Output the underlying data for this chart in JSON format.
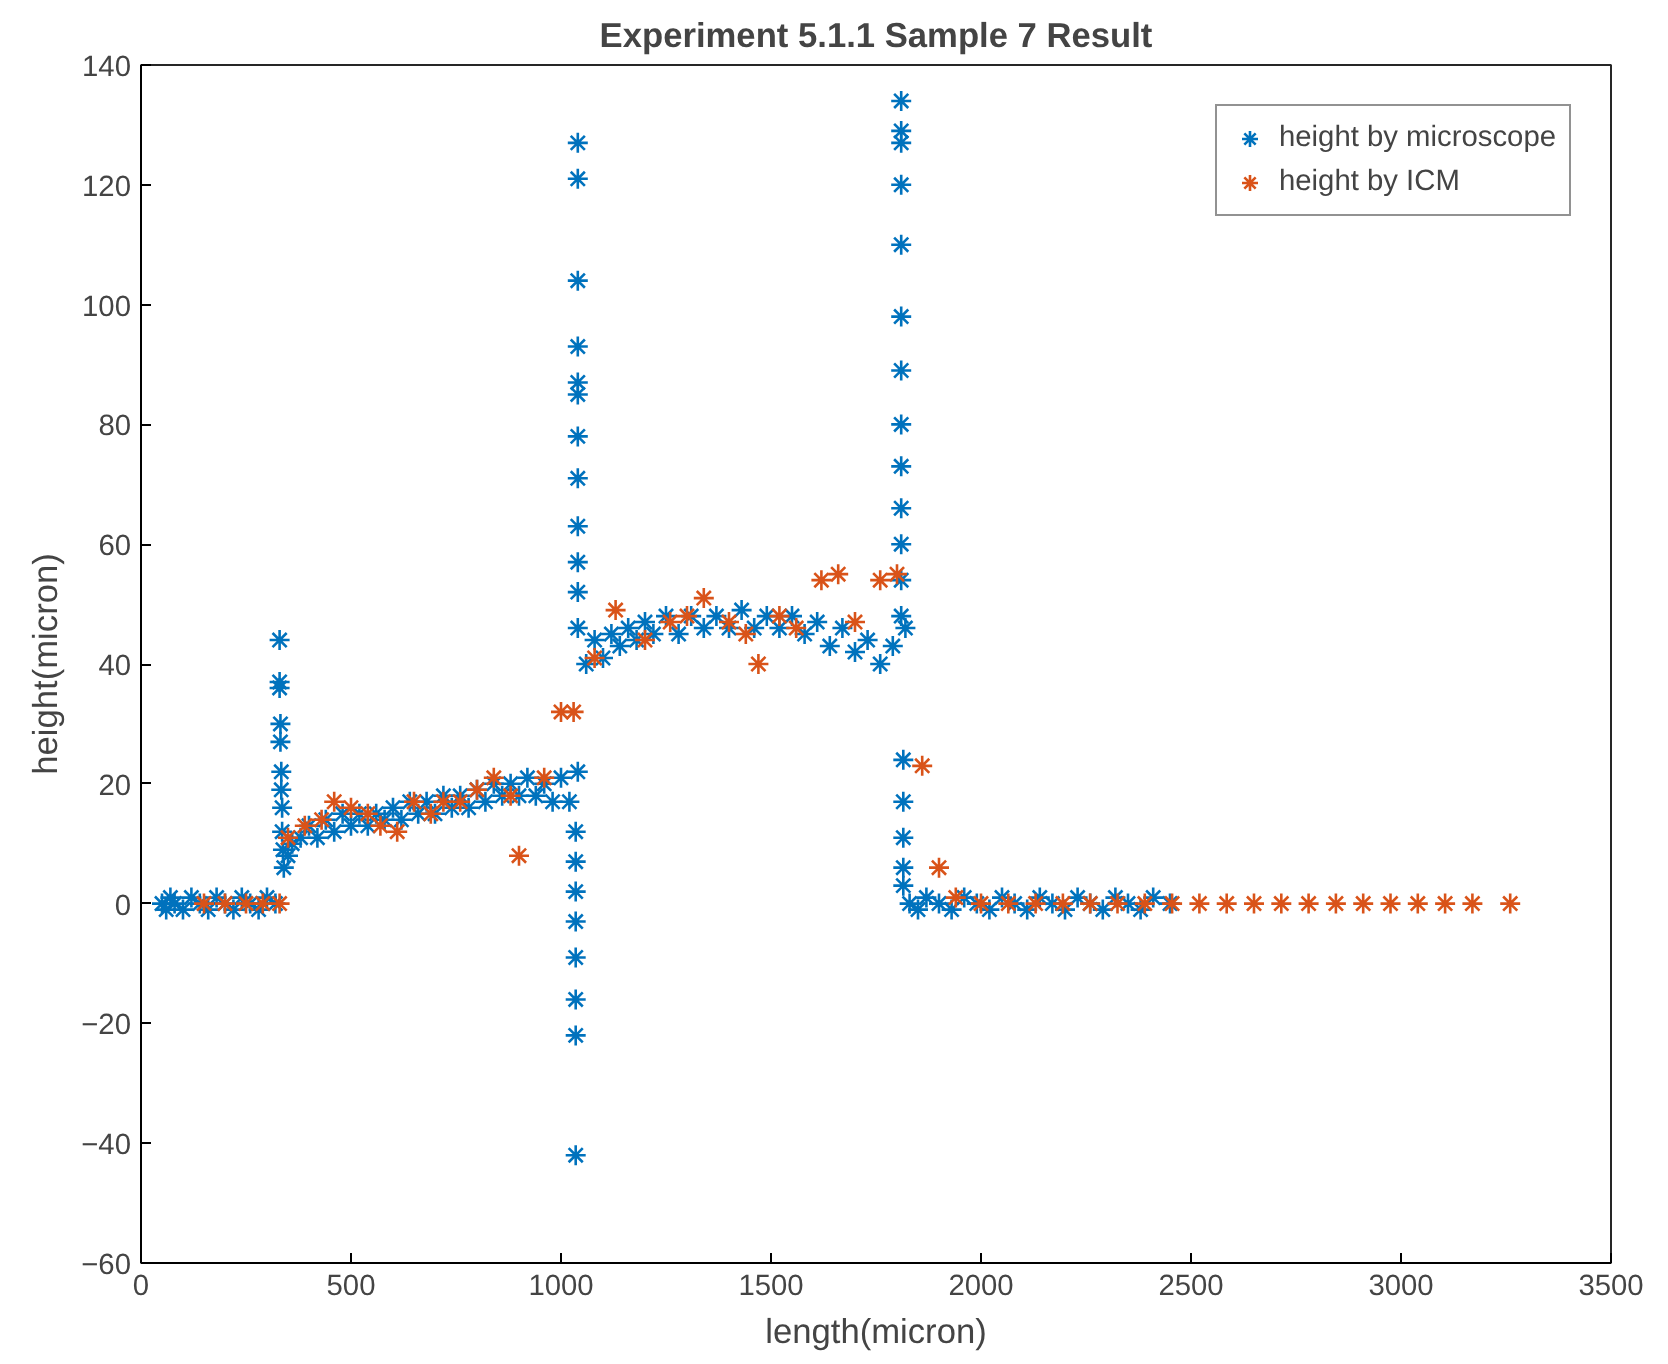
{
  "chart_data": {
    "type": "scatter",
    "title": "Experiment 5.1.1 Sample 7 Result",
    "xlabel": "length(micron)",
    "ylabel": "height(micron)",
    "xlim": [
      0,
      3500
    ],
    "xticks": [
      0,
      500,
      1000,
      1500,
      2000,
      2500,
      3000,
      3500
    ],
    "ylim": [
      -60,
      140
    ],
    "yticks": [
      -60,
      -40,
      -20,
      0,
      20,
      40,
      60,
      80,
      100,
      120,
      140
    ],
    "grid": false,
    "legend": "top right",
    "marker": "cross",
    "series": [
      {
        "name": "height by microscope",
        "color": "#0072bd",
        "x": [
          50,
          60,
          70,
          80,
          100,
          120,
          140,
          160,
          180,
          200,
          220,
          240,
          260,
          280,
          300,
          320,
          330,
          330,
          330,
          332,
          332,
          334,
          334,
          336,
          336,
          338,
          340,
          350,
          360,
          380,
          400,
          420,
          440,
          460,
          480,
          500,
          520,
          540,
          560,
          580,
          600,
          620,
          640,
          660,
          680,
          700,
          720,
          740,
          760,
          780,
          800,
          820,
          840,
          860,
          880,
          900,
          920,
          940,
          960,
          980,
          1000,
          1020,
          1040,
          1035,
          1035,
          1035,
          1035,
          1035,
          1035,
          1035,
          1035,
          1040,
          1040,
          1040,
          1040,
          1040,
          1040,
          1040,
          1040,
          1040,
          1040,
          1040,
          1040,
          1060,
          1080,
          1100,
          1120,
          1140,
          1160,
          1180,
          1200,
          1220,
          1250,
          1280,
          1310,
          1340,
          1370,
          1400,
          1430,
          1460,
          1490,
          1520,
          1550,
          1580,
          1610,
          1640,
          1670,
          1700,
          1730,
          1760,
          1790,
          1810,
          1810,
          1810,
          1810,
          1810,
          1810,
          1810,
          1810,
          1810,
          1810,
          1810,
          1810,
          1810,
          1820,
          1815,
          1815,
          1815,
          1815,
          1815,
          1830,
          1850,
          1870,
          1900,
          1930,
          1960,
          1990,
          2020,
          2050,
          2080,
          2110,
          2140,
          2170,
          2200,
          2230,
          2260,
          2290,
          2320,
          2350,
          2380,
          2410,
          2450
        ],
        "values": [
          0,
          -1,
          1,
          0,
          -1,
          1,
          0,
          -1,
          1,
          0,
          -1,
          1,
          0,
          -1,
          1,
          0,
          44,
          37,
          36,
          30,
          27,
          22,
          19,
          16,
          12,
          9,
          6,
          8,
          10,
          11,
          13,
          11,
          14,
          12,
          15,
          13,
          15,
          13,
          15,
          14,
          16,
          14,
          17,
          15,
          17,
          15,
          18,
          16,
          18,
          16,
          19,
          17,
          20,
          18,
          20,
          18,
          21,
          18,
          20,
          17,
          21,
          17,
          22,
          -42,
          -22,
          -16,
          -9,
          -3,
          2,
          7,
          12,
          127,
          121,
          104,
          93,
          87,
          85,
          78,
          71,
          63,
          57,
          52,
          46,
          40,
          44,
          41,
          45,
          43,
          46,
          44,
          47,
          45,
          48,
          45,
          48,
          46,
          48,
          46,
          49,
          46,
          48,
          46,
          48,
          45,
          47,
          43,
          46,
          42,
          44,
          40,
          43,
          134,
          129,
          127,
          120,
          110,
          98,
          89,
          80,
          73,
          66,
          60,
          54,
          48,
          46,
          24,
          17,
          11,
          6,
          3,
          0,
          -1,
          1,
          0,
          -1,
          1,
          0,
          -1,
          1,
          0,
          -1,
          1,
          0,
          -1,
          1,
          0,
          -1,
          1,
          0,
          -1,
          1,
          0
        ]
      },
      {
        "name": "height by ICM",
        "color": "#d95319",
        "x": [
          150,
          200,
          250,
          290,
          330,
          350,
          390,
          430,
          460,
          500,
          540,
          570,
          610,
          650,
          690,
          720,
          760,
          800,
          840,
          880,
          900,
          960,
          1000,
          1030,
          1080,
          1130,
          1200,
          1260,
          1300,
          1340,
          1400,
          1440,
          1470,
          1520,
          1560,
          1620,
          1660,
          1700,
          1760,
          1800,
          1860,
          1900,
          1940,
          2000,
          2065,
          2130,
          2195,
          2260,
          2325,
          2390,
          2455,
          2520,
          2585,
          2650,
          2715,
          2780,
          2845,
          2910,
          2975,
          3040,
          3105,
          3170,
          3260
        ],
        "values": [
          0,
          0,
          0,
          0,
          0,
          11,
          13,
          14,
          17,
          16,
          15,
          13,
          12,
          17,
          15,
          17,
          17,
          19,
          21,
          18,
          8,
          21,
          32,
          32,
          41,
          49,
          44,
          47,
          48,
          51,
          47,
          45,
          40,
          48,
          46,
          54,
          55,
          47,
          54,
          55,
          23,
          6,
          1,
          0,
          0,
          0,
          0,
          0,
          0,
          0,
          0,
          0,
          0,
          0,
          0,
          0,
          0,
          0,
          0,
          0,
          0,
          0,
          0
        ]
      }
    ]
  }
}
